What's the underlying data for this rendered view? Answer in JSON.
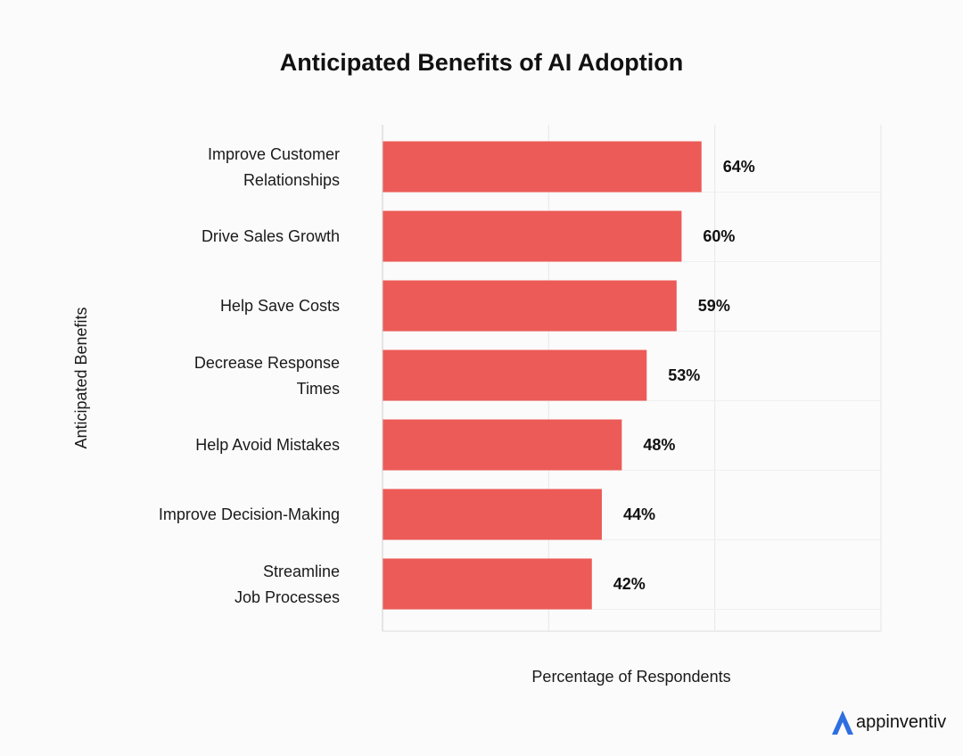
{
  "chart_data": {
    "type": "bar",
    "orientation": "horizontal",
    "title": "Anticipated Benefits of AI Adoption",
    "xlabel": "Percentage of Respondents",
    "ylabel": "Anticipated Benefits",
    "categories": [
      "Improve Customer Relationships",
      "Drive Sales Growth",
      "Help Save Costs",
      "Decrease Response Times",
      "Help Avoid Mistakes",
      "Improve Decision-Making",
      "Streamline Job Processes"
    ],
    "category_lines": [
      [
        "Improve Customer",
        "Relationships"
      ],
      [
        "Drive Sales Growth"
      ],
      [
        "Help Save Costs"
      ],
      [
        "Decrease Response",
        "Times"
      ],
      [
        "Help Avoid Mistakes"
      ],
      [
        "Improve Decision-Making"
      ],
      [
        "Streamline",
        "Job Processes"
      ]
    ],
    "values": [
      64,
      60,
      59,
      53,
      48,
      44,
      42
    ],
    "value_labels": [
      "64%",
      "60%",
      "59%",
      "53%",
      "48%",
      "44%",
      "42%"
    ],
    "xlim": [
      0,
      100
    ],
    "grid": true,
    "bar_color": "#ec5b57",
    "grid_color": "#e6e6e6"
  },
  "brand": {
    "name": "appinventiv",
    "color": "#2f6fe0",
    "icon": "appinventiv-logo-icon"
  }
}
